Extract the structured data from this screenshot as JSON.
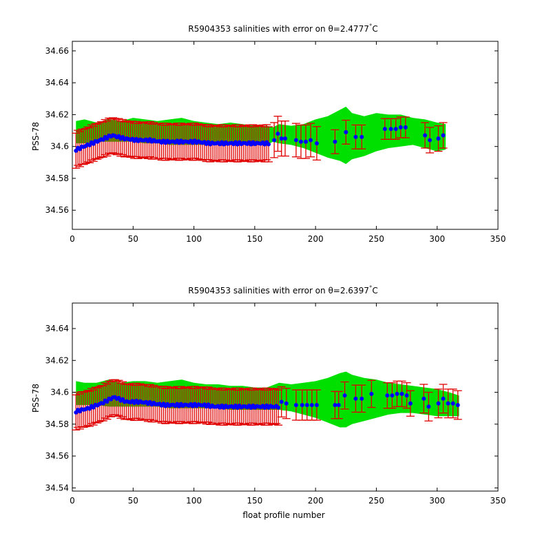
{
  "chart_data": [
    {
      "type": "scatter",
      "title": "R5904353 salinities with error on θ=2.4777°C",
      "title_parts": {
        "prefix": "R5904353 salinities with error on θ=2.4777",
        "degree": "°",
        "unit": "C"
      },
      "xlabel": "",
      "ylabel": "PSS-78",
      "xlim": [
        0,
        350
      ],
      "ylim": [
        34.548,
        34.666
      ],
      "xticks": [
        0,
        50,
        100,
        150,
        200,
        250,
        300,
        350
      ],
      "xtick_labels": [
        "0",
        "50",
        "100",
        "150",
        "200",
        "250",
        "300",
        "350"
      ],
      "yticks": [
        34.56,
        34.58,
        34.6,
        34.62,
        34.64,
        34.66
      ],
      "ytick_labels": [
        "34.56",
        "34.58",
        "34.6",
        "34.62",
        "34.64",
        "34.66"
      ],
      "grid": false,
      "colors": {
        "band": "#00e000",
        "errorbar": "#e00000",
        "marker": "#0000ff",
        "axes": "#000000"
      },
      "band": {
        "x": [
          3,
          10,
          20,
          30,
          40,
          50,
          60,
          70,
          80,
          90,
          100,
          110,
          120,
          130,
          140,
          150,
          160,
          165,
          170,
          180,
          190,
          200,
          210,
          220,
          225,
          230,
          240,
          250,
          260,
          270,
          280,
          290,
          300,
          307
        ],
        "upper": [
          34.616,
          34.617,
          34.615,
          34.617,
          34.616,
          34.618,
          34.617,
          34.616,
          34.617,
          34.618,
          34.616,
          34.615,
          34.614,
          34.615,
          34.614,
          34.613,
          34.613,
          34.612,
          34.614,
          34.613,
          34.614,
          34.617,
          34.619,
          34.623,
          34.625,
          34.621,
          34.619,
          34.621,
          34.62,
          34.62,
          34.618,
          34.617,
          34.615,
          34.614
        ],
        "lower": [
          34.602,
          34.602,
          34.603,
          34.603,
          34.603,
          34.603,
          34.602,
          34.602,
          34.601,
          34.601,
          34.601,
          34.601,
          34.601,
          34.601,
          34.601,
          34.601,
          34.601,
          34.603,
          34.602,
          34.601,
          34.599,
          34.596,
          34.593,
          34.591,
          34.589,
          34.592,
          34.594,
          34.597,
          34.599,
          34.6,
          34.601,
          34.599,
          34.597,
          34.598
        ]
      },
      "dense": {
        "x_start": 3,
        "x_end": 162,
        "step": 1.6,
        "err": 0.011,
        "mid": [
          34.598,
          34.601,
          34.604,
          34.607,
          34.605,
          34.604,
          34.604,
          34.603,
          34.603,
          34.603,
          34.603,
          34.602,
          34.602,
          34.602,
          34.602,
          34.602,
          34.602
        ]
      },
      "points": [
        {
          "x": 166,
          "y": 34.604,
          "err": 0.011
        },
        {
          "x": 169,
          "y": 34.608,
          "err": 0.011
        },
        {
          "x": 172,
          "y": 34.605,
          "err": 0.011
        },
        {
          "x": 175,
          "y": 34.605,
          "err": 0.011
        },
        {
          "x": 184,
          "y": 34.604,
          "err": 0.0105
        },
        {
          "x": 188,
          "y": 34.603,
          "err": 0.0105
        },
        {
          "x": 192,
          "y": 34.603,
          "err": 0.0105
        },
        {
          "x": 196,
          "y": 34.604,
          "err": 0.0105
        },
        {
          "x": 201,
          "y": 34.602,
          "err": 0.0105
        },
        {
          "x": 216,
          "y": 34.603,
          "err": 0.0075
        },
        {
          "x": 225,
          "y": 34.609,
          "err": 0.0075
        },
        {
          "x": 233,
          "y": 34.606,
          "err": 0.0075
        },
        {
          "x": 238,
          "y": 34.606,
          "err": 0.0075
        },
        {
          "x": 257,
          "y": 34.611,
          "err": 0.0065
        },
        {
          "x": 262,
          "y": 34.611,
          "err": 0.0065
        },
        {
          "x": 266,
          "y": 34.611,
          "err": 0.0065
        },
        {
          "x": 270,
          "y": 34.612,
          "err": 0.0065
        },
        {
          "x": 274,
          "y": 34.612,
          "err": 0.0065
        },
        {
          "x": 290,
          "y": 34.607,
          "err": 0.008
        },
        {
          "x": 294,
          "y": 34.604,
          "err": 0.008
        },
        {
          "x": 301,
          "y": 34.605,
          "err": 0.008
        },
        {
          "x": 305,
          "y": 34.607,
          "err": 0.008
        }
      ]
    },
    {
      "type": "scatter",
      "title": "R5904353 salinities with error on θ=2.6397°C",
      "title_parts": {
        "prefix": "R5904353 salinities with error on θ=2.6397",
        "degree": "°",
        "unit": "C"
      },
      "xlabel": "float profile number",
      "ylabel": "PSS-78",
      "xlim": [
        0,
        350
      ],
      "ylim": [
        34.538,
        34.656
      ],
      "xticks": [
        0,
        50,
        100,
        150,
        200,
        250,
        300,
        350
      ],
      "xtick_labels": [
        "0",
        "50",
        "100",
        "150",
        "200",
        "250",
        "300",
        "350"
      ],
      "yticks": [
        34.54,
        34.56,
        34.58,
        34.6,
        34.62,
        34.64
      ],
      "ytick_labels": [
        "34.54",
        "34.56",
        "34.58",
        "34.6",
        "34.62",
        "34.64"
      ],
      "grid": false,
      "colors": {
        "band": "#00e000",
        "errorbar": "#e00000",
        "marker": "#0000ff",
        "axes": "#000000"
      },
      "band": {
        "x": [
          3,
          10,
          20,
          30,
          40,
          50,
          60,
          70,
          80,
          90,
          100,
          110,
          120,
          130,
          140,
          150,
          160,
          170,
          180,
          190,
          200,
          210,
          220,
          225,
          230,
          240,
          250,
          260,
          270,
          280,
          290,
          300,
          310,
          318
        ],
        "upper": [
          34.607,
          34.606,
          34.606,
          34.608,
          34.606,
          34.607,
          34.607,
          34.606,
          34.607,
          34.608,
          34.606,
          34.605,
          34.605,
          34.604,
          34.604,
          34.603,
          34.603,
          34.606,
          34.605,
          34.606,
          34.607,
          34.609,
          34.612,
          34.613,
          34.611,
          34.609,
          34.608,
          34.606,
          34.605,
          34.604,
          34.603,
          34.602,
          34.6,
          34.598
        ],
        "lower": [
          34.592,
          34.592,
          34.592,
          34.591,
          34.591,
          34.591,
          34.591,
          34.591,
          34.59,
          34.59,
          34.59,
          34.59,
          34.59,
          34.589,
          34.589,
          34.589,
          34.589,
          34.589,
          34.588,
          34.586,
          34.584,
          34.581,
          34.578,
          34.578,
          34.58,
          34.582,
          34.584,
          34.586,
          34.587,
          34.587,
          34.586,
          34.585,
          34.585,
          34.585
        ]
      },
      "dense": {
        "x_start": 3,
        "x_end": 170,
        "step": 1.6,
        "err": 0.011,
        "mid": [
          34.588,
          34.59,
          34.593,
          34.597,
          34.594,
          34.594,
          34.593,
          34.592,
          34.592,
          34.592,
          34.592,
          34.591,
          34.591,
          34.591,
          34.591,
          34.591,
          34.591
        ]
      },
      "points": [
        {
          "x": 172,
          "y": 34.594,
          "err": 0.0095
        },
        {
          "x": 176,
          "y": 34.593,
          "err": 0.0095
        },
        {
          "x": 184,
          "y": 34.592,
          "err": 0.0095
        },
        {
          "x": 189,
          "y": 34.592,
          "err": 0.0095
        },
        {
          "x": 193,
          "y": 34.592,
          "err": 0.0095
        },
        {
          "x": 197,
          "y": 34.592,
          "err": 0.0095
        },
        {
          "x": 201,
          "y": 34.592,
          "err": 0.0095
        },
        {
          "x": 216,
          "y": 34.592,
          "err": 0.0085
        },
        {
          "x": 219,
          "y": 34.592,
          "err": 0.0085
        },
        {
          "x": 224,
          "y": 34.598,
          "err": 0.0085
        },
        {
          "x": 233,
          "y": 34.596,
          "err": 0.0085
        },
        {
          "x": 238,
          "y": 34.596,
          "err": 0.0085
        },
        {
          "x": 246,
          "y": 34.599,
          "err": 0.0085
        },
        {
          "x": 259,
          "y": 34.598,
          "err": 0.008
        },
        {
          "x": 263,
          "y": 34.598,
          "err": 0.008
        },
        {
          "x": 267,
          "y": 34.599,
          "err": 0.008
        },
        {
          "x": 271,
          "y": 34.599,
          "err": 0.008
        },
        {
          "x": 275,
          "y": 34.598,
          "err": 0.008
        },
        {
          "x": 278,
          "y": 34.593,
          "err": 0.008
        },
        {
          "x": 289,
          "y": 34.596,
          "err": 0.009
        },
        {
          "x": 293,
          "y": 34.591,
          "err": 0.009
        },
        {
          "x": 301,
          "y": 34.593,
          "err": 0.009
        },
        {
          "x": 305,
          "y": 34.596,
          "err": 0.009
        },
        {
          "x": 309,
          "y": 34.593,
          "err": 0.009
        },
        {
          "x": 313,
          "y": 34.593,
          "err": 0.009
        },
        {
          "x": 317,
          "y": 34.592,
          "err": 0.009
        }
      ]
    }
  ]
}
